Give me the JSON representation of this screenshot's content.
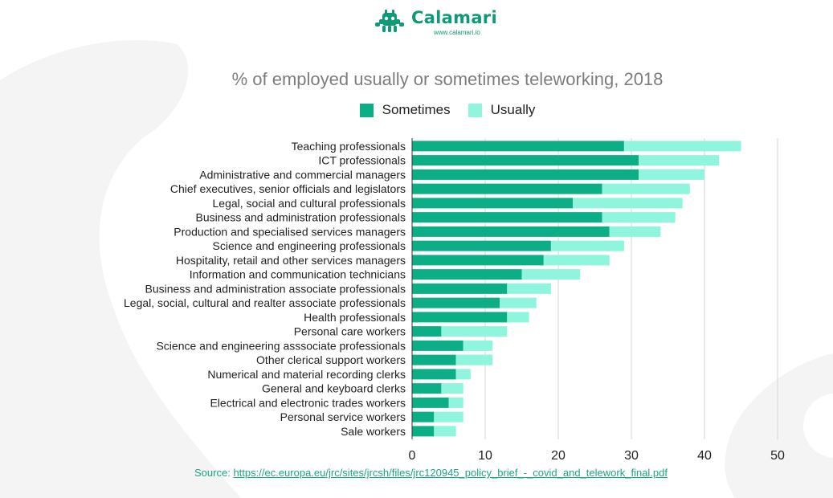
{
  "logo": {
    "name": "Calamari",
    "url": "www.calamari.io",
    "icon": "calamari-octopus-icon"
  },
  "colors": {
    "sometimes": "#0bae85",
    "usually": "#8ff5dc",
    "grid": "#d4d4d4",
    "logo": "#0e9a76",
    "source_link": "#1aa686",
    "background_shape": "#f3f3f3"
  },
  "source": {
    "label": "Source:",
    "link": "https://ec.europa.eu/jrc/sites/jrcsh/files/jrc120945_policy_brief_-_covid_and_telework_final.pdf"
  },
  "chart_data": {
    "type": "bar",
    "orientation": "horizontal",
    "stacked": true,
    "title": "% of employed usually or sometimes teleworking, 2018",
    "xlabel": "",
    "ylabel": "",
    "xlim": [
      0,
      50
    ],
    "xticks": [
      0,
      10,
      20,
      30,
      40,
      50
    ],
    "grid": true,
    "legend_position": "top",
    "categories": [
      "Teaching professionals",
      "ICT professionals",
      "Administrative and commercial managers",
      "Chief executives, senior officials and legislators",
      "Legal, social and cultural professionals",
      "Business and administration professionals",
      "Production and specialised services managers",
      "Science and engineering professionals",
      "Hospitality, retail and other services managers",
      "Information and communication technicians",
      "Business and administration associate professionals",
      "Legal, social, cultural and realter associate professionals",
      "Health professionals",
      "Personal care workers",
      "Science and engineering asssociate professionals",
      "Other clerical support workers",
      "Numerical and material recording clerks",
      "General and keyboard clerks",
      "Electrical and electronic trades workers",
      "Personal service workers",
      "Sale workers"
    ],
    "series": [
      {
        "name": "Sometimes",
        "values": [
          29,
          31,
          31,
          26,
          22,
          26,
          27,
          19,
          18,
          15,
          13,
          12,
          13,
          4,
          7,
          6,
          6,
          4,
          5,
          3,
          3
        ]
      },
      {
        "name": "Usually",
        "values": [
          16,
          11,
          9,
          12,
          15,
          10,
          7,
          10,
          9,
          8,
          6,
          5,
          3,
          9,
          4,
          5,
          2,
          3,
          2,
          4,
          3
        ]
      }
    ]
  }
}
